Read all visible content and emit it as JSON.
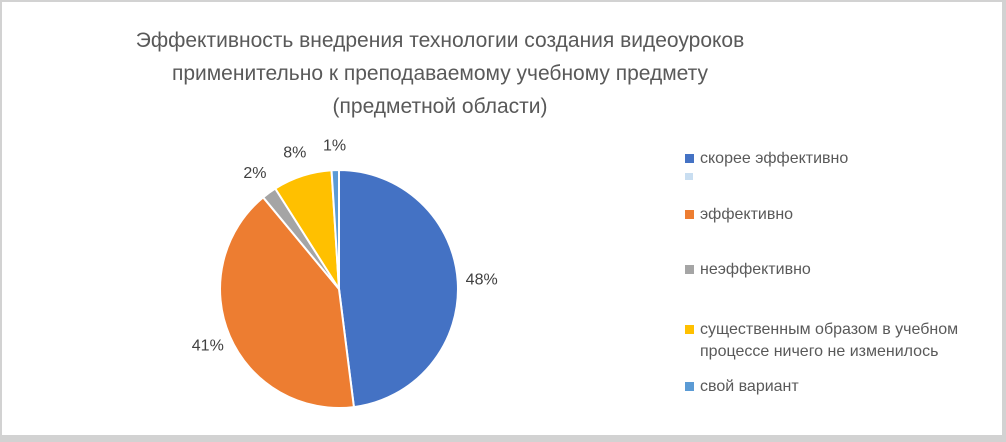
{
  "frame": {
    "background": "#ffffff",
    "border_color": "#d2d2d2"
  },
  "chart_data": {
    "type": "pie",
    "title": "Эффективность внедрения технологии создания видеоуроков применительно к преподаваемому учебному предмету (предметной области)",
    "title_lines": [
      "Эффективность внедрения технологии создания видеоуроков",
      "применительно к преподаваемому учебному предмету",
      "(предметной области)"
    ],
    "labels": [
      "скорее эффективно",
      "эффективно",
      "неэффективно",
      "существенным образом в учебном процессе ничего не изменилось",
      "свой вариант"
    ],
    "values": [
      48,
      41,
      2,
      8,
      1
    ],
    "unit": "%",
    "data_labels": [
      "48%",
      "41%",
      "2%",
      "8%",
      "1%"
    ],
    "colors": [
      "#4472C4",
      "#ED7D31",
      "#A5A5A5",
      "#FFC000",
      "#5B9BD5"
    ],
    "start_angle_deg": 0,
    "direction": "clockwise",
    "legend_position": "right",
    "title_color": "#595959",
    "data_label_color": "#404040",
    "legend_text_color": "#595959",
    "slice_border_color": "#ffffff"
  }
}
